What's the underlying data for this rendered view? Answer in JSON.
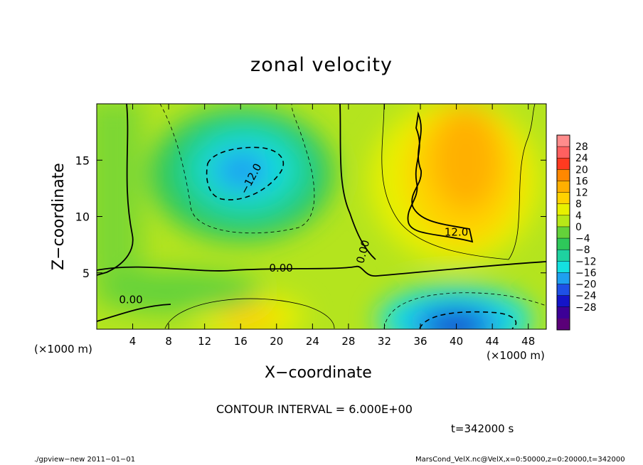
{
  "chart_data": {
    "type": "heatmap",
    "title": "zonal velocity",
    "xlabel": "X−coordinate",
    "ylabel": "Z−coordinate",
    "x_unit": "(×1000 m)",
    "x_unit_right": "(×1000 m)",
    "xlim": [
      0,
      50
    ],
    "ylim": [
      0,
      20
    ],
    "x_ticks": [
      "4",
      "8",
      "12",
      "16",
      "20",
      "24",
      "28",
      "32",
      "36",
      "40",
      "44",
      "48"
    ],
    "y_ticks": [
      "5",
      "10",
      "15"
    ],
    "contour_interval": "CONTOUR INTERVAL = 6.000E+00",
    "time": "t=342000 s",
    "contour_labels": [
      "−12.0",
      "0.00",
      "0.00",
      "0.00",
      "12.0"
    ],
    "colorbar_ticks": [
      "28",
      "24",
      "20",
      "16",
      "12",
      "8",
      "4",
      "0",
      "−4",
      "−8",
      "−12",
      "−16",
      "−20",
      "−24",
      "−28"
    ],
    "colorbar_colors": [
      "#ff8c8c",
      "#ff6060",
      "#ff3a20",
      "#ff8800",
      "#ffb000",
      "#ffd200",
      "#e8f000",
      "#b8e818",
      "#64d23a",
      "#2ec85a",
      "#1ed2a0",
      "#14e0e0",
      "#1ea0f0",
      "#1e50e6",
      "#1414c8",
      "#3c0096",
      "#5a0078"
    ],
    "field_features": [
      {
        "kind": "min",
        "x": 16,
        "z": 14,
        "value": -14
      },
      {
        "kind": "max",
        "x": 42,
        "z": 15,
        "value": 15
      },
      {
        "kind": "min",
        "x": 40,
        "z": 0.7,
        "value": -24
      },
      {
        "kind": "max",
        "x": 17,
        "z": 1.5,
        "value": 11
      }
    ]
  },
  "footer": {
    "left": "./gpview−new   2011−01−01",
    "right": "MarsCond_VelX.nc@VelX,x=0:50000,z=0:20000,t=342000"
  }
}
